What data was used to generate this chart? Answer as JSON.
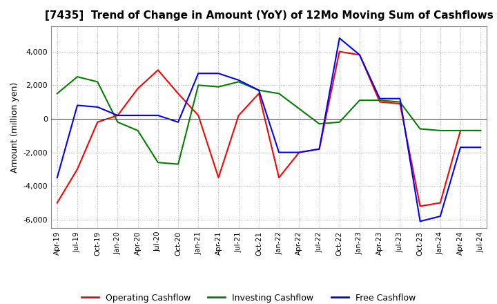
{
  "title": "[7435]  Trend of Change in Amount (YoY) of 12Mo Moving Sum of Cashflows",
  "ylabel": "Amount (million yen)",
  "ylim": [
    -6500,
    5500
  ],
  "yticks": [
    -6000,
    -4000,
    -2000,
    0,
    2000,
    4000
  ],
  "background_color": "#ffffff",
  "x_labels": [
    "Apr-19",
    "Jul-19",
    "Oct-19",
    "Jan-20",
    "Apr-20",
    "Jul-20",
    "Oct-20",
    "Jan-21",
    "Apr-21",
    "Jul-21",
    "Oct-21",
    "Jan-22",
    "Apr-22",
    "Jul-22",
    "Oct-22",
    "Jan-23",
    "Apr-23",
    "Jul-23",
    "Oct-23",
    "Jan-24",
    "Apr-24",
    "Jul-24"
  ],
  "operating": [
    -5000,
    -3000,
    -200,
    200,
    1800,
    2900,
    1500,
    200,
    -3500,
    200,
    1500,
    -3500,
    -2000,
    -1800,
    4000,
    3800,
    1000,
    900,
    -5200,
    -5000,
    -700,
    -700
  ],
  "investing": [
    1500,
    2500,
    2200,
    -200,
    -700,
    -2600,
    -2700,
    2000,
    1900,
    2200,
    1700,
    1500,
    600,
    -300,
    -200,
    1100,
    1100,
    1000,
    -600,
    -700,
    -700,
    -700
  ],
  "free": [
    -3500,
    800,
    700,
    200,
    200,
    200,
    -200,
    2700,
    2700,
    2300,
    1700,
    -2000,
    -2000,
    -1800,
    4800,
    3800,
    1200,
    1200,
    -6100,
    -5800,
    -1700,
    -1700
  ],
  "line_colors": {
    "operating": "#ff0000",
    "investing": "#008000",
    "free": "#0000ff"
  },
  "legend": [
    {
      "label": "Operating Cashflow",
      "color": "#ff0000"
    },
    {
      "label": "Investing Cashflow",
      "color": "#008000"
    },
    {
      "label": "Free Cashflow",
      "color": "#0000ff"
    }
  ]
}
